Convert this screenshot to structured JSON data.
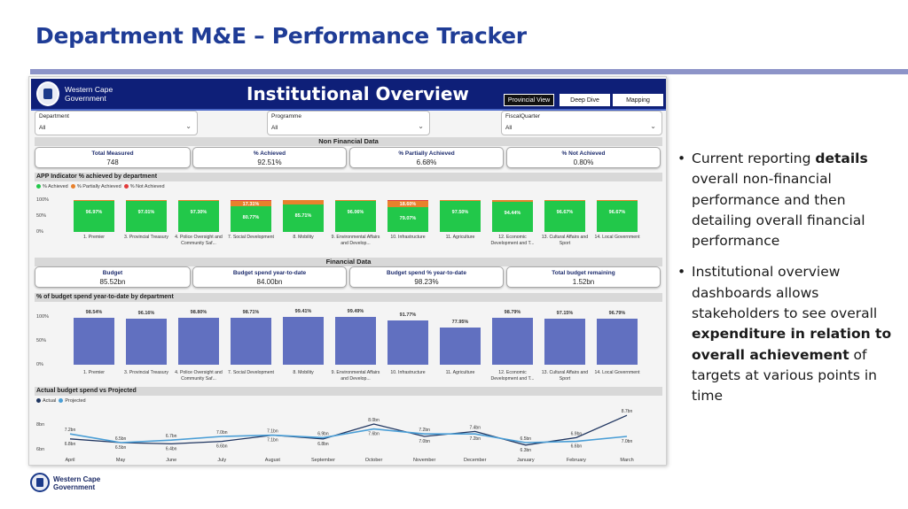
{
  "slide": {
    "title": "Department M&E – Performance Tracker",
    "bullets": [
      {
        "parts": [
          {
            "t": "Current reporting ",
            "b": false
          },
          {
            "t": "details",
            "b": true
          },
          {
            "t": " overall non-financial performance and then detailing overall financial performance",
            "b": false
          }
        ]
      },
      {
        "parts": [
          {
            "t": "Institutional overview dashboards allows stakeholders to see overall ",
            "b": false
          },
          {
            "t": "expenditure in relation to overall achievement",
            "b": true
          },
          {
            "t": " of targets at various points in time",
            "b": false
          }
        ]
      }
    ],
    "footer_logo_text": "Western Cape\nGovernment"
  },
  "dashboard": {
    "logo_text": "Western Cape\nGovernment",
    "title": "Institutional Overview",
    "nav_buttons": [
      "Provincial View",
      "Deep Dive",
      "Mapping"
    ],
    "slicers": [
      {
        "label": "Department",
        "value": "All"
      },
      {
        "label": "Programme",
        "value": "All"
      },
      {
        "label": "FiscalQuarter",
        "value": "All"
      }
    ],
    "non_financial": {
      "section": "Non Financial Data",
      "kpis": [
        {
          "label": "Total Measured",
          "value": "748"
        },
        {
          "label": "% Achieved",
          "value": "92.51%"
        },
        {
          "label": "% Partially Achieved",
          "value": "6.68%"
        },
        {
          "label": "% Not Achieved",
          "value": "0.80%"
        }
      ]
    },
    "financial": {
      "section": "Financial Data",
      "kpis": [
        {
          "label": "Budget",
          "value": "85.52bn"
        },
        {
          "label": "Budget spend year-to-date",
          "value": "84.00bn"
        },
        {
          "label": "Budget spend % year-to-date",
          "value": "98.23%"
        },
        {
          "label": "Total budget remaining",
          "value": "1.52bn"
        }
      ]
    },
    "colors": {
      "header": "#0e1f78",
      "achieved": "#22c84a",
      "partial": "#e8812c",
      "not_achieved": "#e23b3b",
      "budget_bar": "#6170c0",
      "actual_line": "#1f3560",
      "projected_line": "#4a9ed6"
    }
  },
  "chart_data": [
    {
      "type": "bar",
      "title": "APP Indicator % achieved by department",
      "legend": [
        "% Achieved",
        "% Partially Achieved",
        "% Not Achieved"
      ],
      "yticks": [
        "100%",
        "50%",
        "0%"
      ],
      "ylim": [
        0,
        100
      ],
      "categories": [
        "1. Premier",
        "3. Provincial Treasury",
        "4. Police Oversight and Community Saf...",
        "7. Social Development",
        "8. Mobility",
        "9. Environmental Affairs and Develop...",
        "10. Infrastructure",
        "11. Agriculture",
        "12. Economic Development and T...",
        "13. Cultural Affairs and Sport",
        "14. Local Government"
      ],
      "series": [
        {
          "name": "% Achieved",
          "values": [
            96.97,
            97.01,
            97.3,
            80.77,
            85.71,
            96.06,
            79.07,
            97.5,
            94.44,
            96.67,
            96.67
          ]
        },
        {
          "name": "% Partially Achieved",
          "values": [
            3.03,
            2.99,
            2.7,
            17.31,
            14.29,
            3.94,
            18.6,
            2.5,
            5.56,
            3.33,
            3.33
          ]
        },
        {
          "name": "% Not Achieved",
          "values": [
            0,
            0,
            0,
            1.92,
            0,
            0,
            2.33,
            0,
            0,
            0,
            0
          ]
        }
      ],
      "labels": [
        "96.97%",
        "97.01%",
        "97.30%",
        "80.77%",
        "85.71%",
        "96.06%",
        "79.07%",
        "97.50%",
        "94.44%",
        "96.67%",
        "96.67%"
      ],
      "partial_labels": [
        "",
        "",
        "",
        "17.31%",
        "",
        "",
        "18.60%",
        "",
        "",
        "",
        ""
      ]
    },
    {
      "type": "bar",
      "title": "% of budget spend year-to-date by department",
      "yticks": [
        "100%",
        "50%",
        "0%"
      ],
      "ylim": [
        0,
        100
      ],
      "categories": [
        "1. Premier",
        "3. Provincial Treasury",
        "4. Police Oversight and Community Saf...",
        "7. Social Development",
        "8. Mobility",
        "9. Environmental Affairs and Develop...",
        "10. Infrastructure",
        "11. Agriculture",
        "12. Economic Development and T...",
        "13. Cultural Affairs and Sport",
        "14. Local Government"
      ],
      "values": [
        98.54,
        96.16,
        98.8,
        98.71,
        99.41,
        99.49,
        91.77,
        77.95,
        98.79,
        97.15,
        96.79
      ],
      "labels": [
        "98.54%",
        "96.16%",
        "98.80%",
        "98.71%",
        "99.41%",
        "99.49%",
        "91.77%",
        "77.95%",
        "98.79%",
        "97.15%",
        "96.79%"
      ]
    },
    {
      "type": "line",
      "title": "Actual budget spend vs Projected",
      "legend": [
        "Actual",
        "Projected"
      ],
      "yticks": [
        "8bn",
        "6bn"
      ],
      "ylim": [
        6,
        9
      ],
      "categories": [
        "April",
        "May",
        "June",
        "July",
        "August",
        "September",
        "October",
        "November",
        "December",
        "January",
        "February",
        "March"
      ],
      "series": [
        {
          "name": "Actual",
          "values": [
            6.8,
            6.5,
            6.4,
            6.6,
            7.1,
            6.8,
            8.0,
            7.0,
            7.4,
            6.3,
            6.9,
            8.7
          ],
          "labels": [
            "6.8bn",
            "6.5bn",
            "6.4bn",
            "6.6bn",
            "7.1bn",
            "6.8bn",
            "8.0bn",
            "7.0bn",
            "7.4bn",
            "6.3bn",
            "6.9bn",
            "8.7bn"
          ]
        },
        {
          "name": "Projected",
          "values": [
            7.2,
            6.5,
            6.7,
            7.0,
            7.1,
            6.9,
            7.6,
            7.2,
            7.2,
            6.5,
            6.6,
            7.0
          ],
          "labels": [
            "7.2bn",
            "6.5bn",
            "6.7bn",
            "7.0bn",
            "7.1bn",
            "6.9bn",
            "7.6bn",
            "7.2bn",
            "7.2bn",
            "6.5bn",
            "6.6bn",
            "7.0bn"
          ]
        }
      ]
    }
  ]
}
